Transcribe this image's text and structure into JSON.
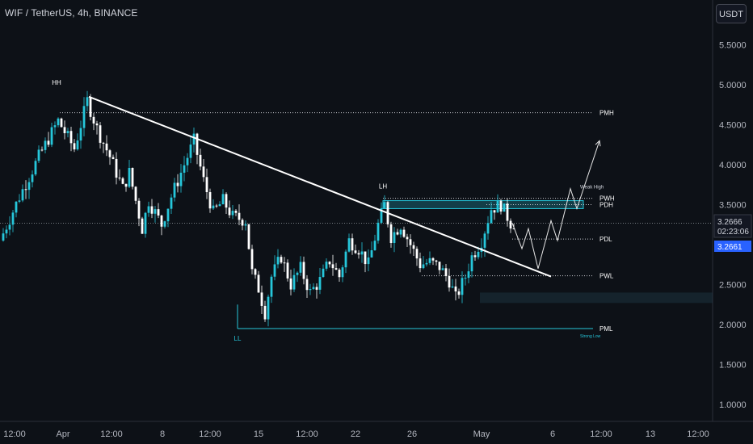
{
  "header": {
    "symbol_title": "WIF / TetherUS, 4h, BINANCE",
    "currency_button": "USDT"
  },
  "price_box": {
    "last_price": "3.2666",
    "countdown": "02:23:06",
    "marker_price": "3.2661"
  },
  "colors": {
    "background": "#0d1117",
    "bull": "#26c6da",
    "bear": "#ffffff",
    "trendline": "#ffffff",
    "zone": "#26c6da"
  },
  "chart_data": {
    "type": "candlestick",
    "symbol": "WIF / TetherUS",
    "interval": "4h",
    "exchange": "BINANCE",
    "y_ticks": [
      "5.5000",
      "5.0000",
      "4.5000",
      "4.0000",
      "3.5000",
      "3.0000",
      "2.5000",
      "2.0000",
      "1.5000",
      "1.0000"
    ],
    "ylim": [
      0.75,
      5.95
    ],
    "x_ticks": [
      "12:00",
      "Apr",
      "12:00",
      "8",
      "12:00",
      "15",
      "12:00",
      "22",
      "26",
      "May",
      "6",
      "12:00",
      "13",
      "12:00"
    ],
    "price_path": [
      [
        0,
        3.05
      ],
      [
        6,
        3.6
      ],
      [
        12,
        4.1
      ],
      [
        18,
        4.55
      ],
      [
        23,
        4.2
      ],
      [
        27,
        4.8
      ],
      [
        30,
        4.45
      ],
      [
        34,
        4.1
      ],
      [
        38,
        3.7
      ],
      [
        40,
        3.9
      ],
      [
        44,
        3.2
      ],
      [
        46,
        3.55
      ],
      [
        50,
        3.25
      ],
      [
        53,
        3.6
      ],
      [
        56,
        3.9
      ],
      [
        60,
        4.3
      ],
      [
        63,
        3.8
      ],
      [
        66,
        3.4
      ],
      [
        69,
        3.55
      ],
      [
        72,
        3.35
      ],
      [
        76,
        3.3
      ],
      [
        78,
        2.65
      ],
      [
        80,
        2.45
      ],
      [
        82,
        2.15
      ],
      [
        84,
        2.6
      ],
      [
        87,
        2.85
      ],
      [
        90,
        2.5
      ],
      [
        93,
        2.7
      ],
      [
        96,
        2.4
      ],
      [
        99,
        2.55
      ],
      [
        102,
        2.8
      ],
      [
        105,
        2.6
      ],
      [
        108,
        3.05
      ],
      [
        111,
        2.95
      ],
      [
        114,
        2.75
      ],
      [
        117,
        3.25
      ],
      [
        119,
        3.5
      ],
      [
        121,
        3.1
      ],
      [
        124,
        3.25
      ],
      [
        127,
        3.0
      ],
      [
        130,
        2.75
      ],
      [
        133,
        2.78
      ],
      [
        136,
        2.72
      ],
      [
        139,
        2.55
      ],
      [
        141,
        2.33
      ],
      [
        144,
        2.6
      ],
      [
        146,
        2.85
      ],
      [
        149,
        3.05
      ],
      [
        152,
        3.45
      ],
      [
        155,
        3.5
      ],
      [
        158,
        3.27
      ]
    ],
    "forecast_path": [
      [
        158,
        3.27
      ],
      [
        161,
        2.95
      ],
      [
        163,
        3.2
      ],
      [
        166,
        2.7
      ],
      [
        170,
        3.3
      ],
      [
        172,
        3.05
      ],
      [
        176,
        3.7
      ],
      [
        178,
        3.45
      ],
      [
        185,
        4.3
      ]
    ],
    "trendline": {
      "from": [
        27,
        4.85
      ],
      "to": [
        170,
        2.6
      ]
    },
    "supply_zone": {
      "from_bar": 118,
      "to_bar": 180,
      "low": 3.45,
      "high": 3.55
    },
    "demand_zone": {
      "from_bar": 148,
      "to_bar": 220,
      "low": 2.27,
      "high": 2.4
    },
    "levels": [
      {
        "label": "PMH",
        "price": 4.65,
        "from_bar": 18,
        "style": "dotted"
      },
      {
        "label": "PWH",
        "price": 3.58,
        "from_bar": 118,
        "style": "dotted"
      },
      {
        "label": "PDH",
        "price": 3.5,
        "from_bar": 150,
        "style": "dotted"
      },
      {
        "label": "PDL",
        "price": 3.07,
        "from_bar": 158,
        "style": "dotted"
      },
      {
        "label": "PWL",
        "price": 2.61,
        "from_bar": 130,
        "style": "dotted"
      },
      {
        "label": "PML",
        "price": 1.95,
        "from_bar": 73,
        "style": "solid"
      }
    ],
    "swing_labels": [
      {
        "label": "HH",
        "bar": 17,
        "price": 5.0
      },
      {
        "label": "LH",
        "bar": 118,
        "price": 3.7
      },
      {
        "label": "LL",
        "bar": 73,
        "price": 1.8
      }
    ],
    "annotations": {
      "weak_high": "Weak High",
      "strong_low": "Strong Low"
    },
    "last_price": 3.2666,
    "last_price_marker": 3.2661
  }
}
